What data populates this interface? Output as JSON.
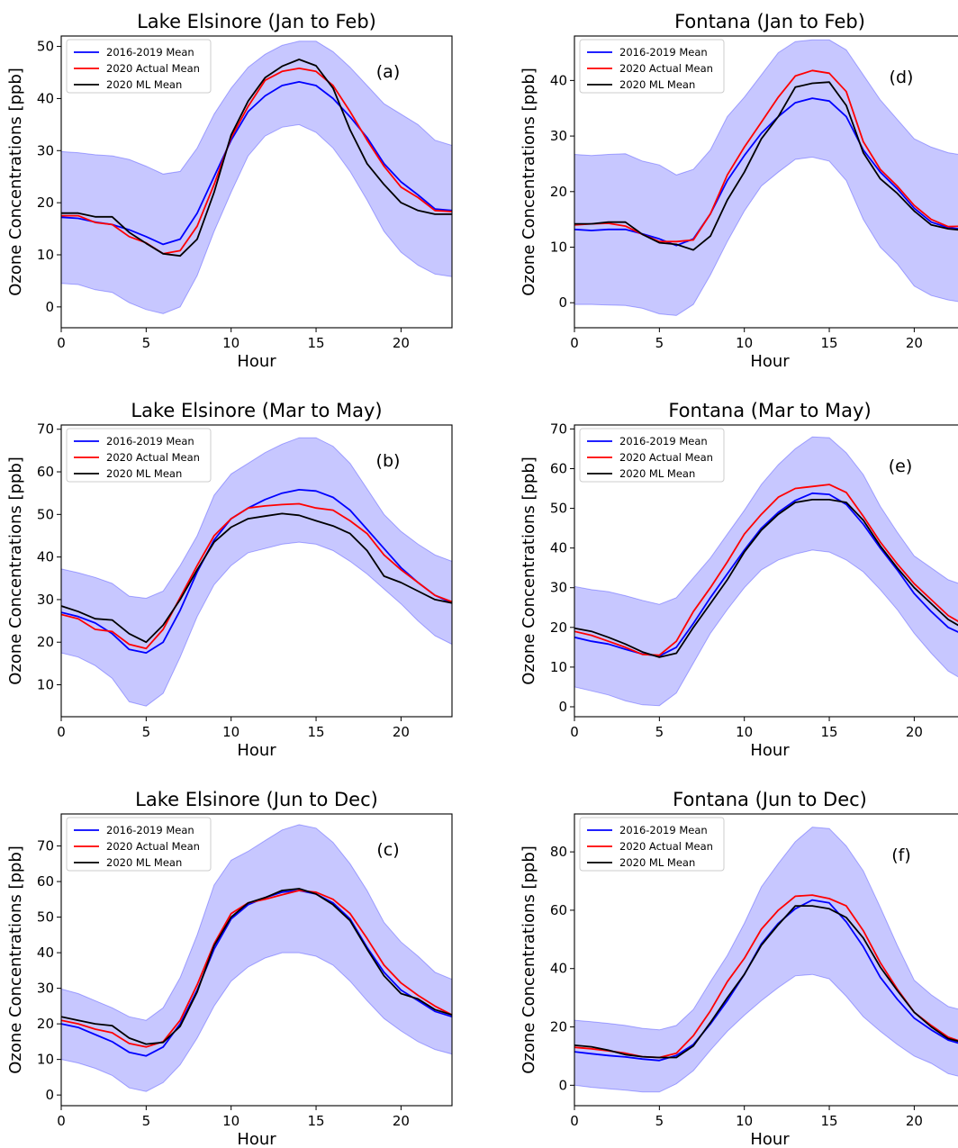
{
  "page": {
    "width": 1064,
    "height": 1275
  },
  "colors": {
    "band": "#0000ff",
    "blue": "#0000ff",
    "red": "#ff0000",
    "black": "#000000"
  },
  "chart_data": [
    {
      "type": "line",
      "title": "Lake Elsinore (Jan to Feb)",
      "panel_label": "(a)",
      "xlabel": "Hour",
      "ylabel": "Ozone Concentrations [ppb]",
      "xlim": [
        0,
        23
      ],
      "ylim": [
        -4,
        52
      ],
      "xticks": [
        0,
        5,
        10,
        15,
        20
      ],
      "yticks": [
        0,
        10,
        20,
        30,
        40,
        50
      ],
      "x": [
        0,
        1,
        2,
        3,
        4,
        5,
        6,
        7,
        8,
        9,
        10,
        11,
        12,
        13,
        14,
        15,
        16,
        17,
        18,
        19,
        20,
        21,
        22,
        23
      ],
      "band": {
        "lower": [
          4.5,
          4.3,
          3.3,
          2.8,
          0.8,
          -0.5,
          -1.3,
          0.0,
          6.0,
          14.5,
          22.0,
          29.0,
          32.8,
          34.5,
          35.0,
          33.5,
          30.5,
          26.0,
          20.5,
          14.5,
          10.5,
          8.0,
          6.3,
          5.8
        ],
        "upper": [
          29.8,
          29.6,
          29.2,
          29.0,
          28.3,
          27.0,
          25.5,
          26.0,
          30.5,
          37.0,
          42.0,
          46.0,
          48.5,
          50.2,
          51.0,
          51.0,
          49.0,
          46.0,
          42.5,
          39.0,
          37.0,
          35.0,
          32.0,
          31.0
        ]
      },
      "series": [
        {
          "name": "2016-2019 Mean",
          "color": "#0000ff",
          "values": [
            17.2,
            17.0,
            16.3,
            15.8,
            14.8,
            13.5,
            12.0,
            13.0,
            18.0,
            25.0,
            32.0,
            37.5,
            40.5,
            42.5,
            43.2,
            42.5,
            40.0,
            36.5,
            32.5,
            27.5,
            24.0,
            21.5,
            18.8,
            18.5
          ]
        },
        {
          "name": "2020 Actual Mean",
          "color": "#ff0000",
          "values": [
            17.5,
            17.5,
            16.2,
            15.8,
            13.5,
            12.3,
            10.2,
            10.8,
            15.5,
            23.5,
            32.5,
            38.5,
            43.5,
            45.2,
            45.8,
            45.2,
            42.5,
            37.5,
            32.0,
            27.0,
            23.0,
            21.0,
            18.5,
            18.3
          ]
        },
        {
          "name": "2020 ML Mean",
          "color": "#000000",
          "values": [
            18.0,
            18.0,
            17.3,
            17.3,
            14.3,
            12.2,
            10.2,
            9.8,
            13.0,
            22.0,
            33.0,
            39.5,
            44.0,
            46.2,
            47.5,
            46.3,
            42.0,
            34.0,
            27.5,
            23.5,
            20.0,
            18.5,
            17.8,
            17.8
          ]
        }
      ]
    },
    {
      "type": "line",
      "title": "Fontana (Jan to Feb)",
      "panel_label": "(d)",
      "xlabel": "Hour",
      "ylabel": "Ozone Concentrations [ppb]",
      "xlim": [
        0,
        23
      ],
      "ylim": [
        -4.5,
        48
      ],
      "xticks": [
        0,
        5,
        10,
        15,
        20
      ],
      "yticks": [
        0,
        10,
        20,
        30,
        40
      ],
      "x": [
        0,
        1,
        2,
        3,
        4,
        5,
        6,
        7,
        8,
        9,
        10,
        11,
        12,
        13,
        14,
        15,
        16,
        17,
        18,
        19,
        20,
        21,
        22,
        23
      ],
      "band": {
        "lower": [
          -0.3,
          -0.3,
          -0.4,
          -0.5,
          -1.0,
          -2.0,
          -2.3,
          -0.3,
          5.0,
          11.0,
          16.5,
          21.0,
          23.5,
          25.8,
          26.2,
          25.5,
          22.0,
          15.0,
          10.0,
          7.0,
          3.0,
          1.3,
          0.5,
          0.0
        ],
        "upper": [
          26.7,
          26.5,
          26.7,
          26.8,
          25.5,
          24.8,
          23.0,
          24.0,
          27.5,
          33.5,
          37.0,
          41.0,
          45.0,
          47.0,
          47.3,
          47.3,
          45.5,
          41.0,
          36.5,
          33.0,
          29.5,
          28.0,
          27.0,
          26.5
        ]
      },
      "series": [
        {
          "name": "2016-2019 Mean",
          "color": "#0000ff",
          "values": [
            13.2,
            13.0,
            13.2,
            13.2,
            12.4,
            11.5,
            10.3,
            11.5,
            16.0,
            22.0,
            26.5,
            30.5,
            33.5,
            36.0,
            36.8,
            36.3,
            33.5,
            27.5,
            23.5,
            20.5,
            17.0,
            14.5,
            13.5,
            13.2
          ]
        },
        {
          "name": "2020 Actual Mean",
          "color": "#ff0000",
          "values": [
            14.0,
            14.2,
            14.3,
            13.8,
            12.3,
            11.0,
            11.0,
            11.3,
            16.0,
            23.0,
            28.0,
            32.5,
            37.0,
            40.8,
            41.8,
            41.3,
            38.0,
            29.0,
            24.0,
            21.0,
            17.5,
            15.0,
            13.7,
            13.8
          ]
        },
        {
          "name": "2020 ML Mean",
          "color": "#000000",
          "values": [
            14.2,
            14.2,
            14.5,
            14.5,
            12.3,
            10.8,
            10.5,
            9.5,
            12.0,
            18.5,
            23.5,
            29.5,
            33.5,
            38.8,
            39.5,
            39.7,
            35.5,
            27.0,
            22.3,
            19.7,
            16.5,
            14.0,
            13.3,
            13.0
          ]
        }
      ]
    },
    {
      "type": "line",
      "title": "Lake Elsinore (Mar to May)",
      "panel_label": "(b)",
      "xlabel": "Hour",
      "ylabel": "Ozone Concentrations [ppb]",
      "xlim": [
        0,
        23
      ],
      "ylim": [
        2.5,
        71
      ],
      "xticks": [
        0,
        5,
        10,
        15,
        20
      ],
      "yticks": [
        10,
        20,
        30,
        40,
        50,
        60,
        70
      ],
      "x": [
        0,
        1,
        2,
        3,
        4,
        5,
        6,
        7,
        8,
        9,
        10,
        11,
        12,
        13,
        14,
        15,
        16,
        17,
        18,
        19,
        20,
        21,
        22,
        23
      ],
      "band": {
        "lower": [
          17.5,
          16.5,
          14.5,
          11.5,
          6.0,
          5.0,
          8.0,
          16.5,
          26.0,
          33.5,
          38.0,
          41.0,
          42.0,
          43.0,
          43.5,
          43.0,
          41.5,
          39.0,
          36.0,
          32.5,
          29.0,
          25.0,
          21.5,
          19.5
        ],
        "upper": [
          37.2,
          36.3,
          35.2,
          33.8,
          30.8,
          30.3,
          32.0,
          38.0,
          45.0,
          54.5,
          59.5,
          62.0,
          64.5,
          66.5,
          68.0,
          68.0,
          66.0,
          62.0,
          56.0,
          50.0,
          46.0,
          43.0,
          40.5,
          39.0
        ]
      },
      "series": [
        {
          "name": "2016-2019 Mean",
          "color": "#0000ff",
          "values": [
            27.0,
            26.0,
            24.5,
            22.0,
            18.3,
            17.5,
            20.0,
            27.5,
            36.5,
            44.0,
            49.0,
            51.5,
            53.5,
            55.0,
            55.8,
            55.5,
            54.0,
            51.0,
            46.5,
            42.0,
            37.5,
            34.0,
            31.0,
            29.2
          ]
        },
        {
          "name": "2020 Actual Mean",
          "color": "#ff0000",
          "values": [
            26.5,
            25.5,
            23.0,
            22.5,
            19.5,
            18.5,
            23.0,
            30.5,
            38.0,
            45.0,
            49.0,
            51.5,
            52.0,
            52.3,
            52.5,
            51.5,
            51.0,
            48.5,
            45.5,
            40.5,
            37.0,
            34.0,
            31.0,
            29.5
          ]
        },
        {
          "name": "2020 ML Mean",
          "color": "#000000",
          "values": [
            28.5,
            27.2,
            25.5,
            25.2,
            22.0,
            20.0,
            24.0,
            30.0,
            37.0,
            43.5,
            47.0,
            49.0,
            49.6,
            50.2,
            49.8,
            48.5,
            47.3,
            45.5,
            41.5,
            35.5,
            34.0,
            32.0,
            30.0,
            29.2
          ]
        }
      ]
    },
    {
      "type": "line",
      "title": "Fontana (Mar to May)",
      "panel_label": "(e)",
      "xlabel": "Hour",
      "ylabel": "Ozone Concentrations [ppb]",
      "xlim": [
        0,
        23
      ],
      "ylim": [
        -2.5,
        71
      ],
      "xticks": [
        0,
        5,
        10,
        15,
        20
      ],
      "yticks": [
        0,
        10,
        20,
        30,
        40,
        50,
        60,
        70
      ],
      "x": [
        0,
        1,
        2,
        3,
        4,
        5,
        6,
        7,
        8,
        9,
        10,
        11,
        12,
        13,
        14,
        15,
        16,
        17,
        18,
        19,
        20,
        21,
        22,
        23
      ],
      "band": {
        "lower": [
          5.0,
          4.0,
          3.0,
          1.5,
          0.5,
          0.3,
          3.5,
          11.0,
          18.5,
          24.5,
          30.0,
          34.5,
          37.0,
          38.5,
          39.5,
          39.0,
          37.0,
          34.0,
          29.5,
          24.5,
          18.5,
          13.5,
          9.0,
          6.5
        ],
        "upper": [
          30.3,
          29.5,
          29.0,
          28.0,
          26.8,
          25.8,
          27.5,
          32.5,
          37.5,
          43.5,
          49.5,
          56.0,
          61.0,
          65.0,
          68.0,
          67.8,
          64.0,
          58.5,
          50.5,
          44.0,
          38.0,
          35.0,
          32.0,
          30.5
        ]
      },
      "series": [
        {
          "name": "2016-2019 Mean",
          "color": "#0000ff",
          "values": [
            17.5,
            16.5,
            15.8,
            14.5,
            13.3,
            12.8,
            15.0,
            21.0,
            27.5,
            33.5,
            39.5,
            45.0,
            49.0,
            52.0,
            53.8,
            53.5,
            51.0,
            46.0,
            40.0,
            34.5,
            28.5,
            24.0,
            20.0,
            18.0
          ]
        },
        {
          "name": "2020 Actual Mean",
          "color": "#ff0000",
          "values": [
            19.0,
            18.0,
            16.5,
            15.0,
            13.2,
            13.0,
            16.5,
            24.0,
            30.0,
            36.5,
            43.5,
            48.5,
            52.8,
            55.0,
            55.5,
            56.0,
            54.0,
            48.0,
            41.5,
            36.0,
            31.0,
            27.0,
            23.0,
            20.5
          ]
        },
        {
          "name": "2020 ML Mean",
          "color": "#000000",
          "values": [
            19.8,
            19.0,
            17.5,
            15.8,
            13.8,
            12.5,
            13.5,
            20.0,
            26.0,
            32.0,
            39.0,
            44.5,
            48.5,
            51.5,
            52.2,
            52.2,
            51.5,
            47.0,
            40.5,
            35.0,
            30.0,
            26.0,
            22.0,
            19.5
          ]
        }
      ]
    },
    {
      "type": "line",
      "title": "Lake Elsinore (Jun to Dec)",
      "panel_label": "(c)",
      "xlabel": "Hour",
      "ylabel": "Ozone Concentrations [ppb]",
      "xlim": [
        0,
        23
      ],
      "ylim": [
        -3,
        79
      ],
      "xticks": [
        0,
        5,
        10,
        15,
        20
      ],
      "yticks": [
        0,
        10,
        20,
        30,
        40,
        50,
        60,
        70
      ],
      "x": [
        0,
        1,
        2,
        3,
        4,
        5,
        6,
        7,
        8,
        9,
        10,
        11,
        12,
        13,
        14,
        15,
        16,
        17,
        18,
        19,
        20,
        21,
        22,
        23
      ],
      "band": {
        "lower": [
          10.0,
          9.0,
          7.5,
          5.5,
          2.0,
          1.0,
          3.5,
          8.5,
          16.0,
          25.0,
          32.0,
          36.0,
          38.5,
          40.0,
          40.0,
          39.0,
          36.5,
          32.0,
          26.5,
          21.5,
          18.0,
          15.0,
          12.8,
          11.5
        ],
        "upper": [
          29.8,
          28.5,
          26.5,
          24.5,
          22.0,
          21.0,
          24.5,
          33.0,
          45.0,
          59.0,
          66.0,
          68.5,
          71.5,
          74.5,
          76.0,
          75.0,
          71.0,
          65.0,
          57.5,
          48.5,
          43.0,
          39.0,
          34.5,
          32.5
        ]
      },
      "series": [
        {
          "name": "2016-2019 Mean",
          "color": "#0000ff",
          "values": [
            20.0,
            19.0,
            17.0,
            15.0,
            12.0,
            11.0,
            13.5,
            20.0,
            29.5,
            41.0,
            49.5,
            53.5,
            55.5,
            57.0,
            57.5,
            56.5,
            54.0,
            49.5,
            41.5,
            34.5,
            29.5,
            26.5,
            23.5,
            22.0
          ]
        },
        {
          "name": "2020 Actual Mean",
          "color": "#ff0000",
          "values": [
            21.0,
            20.0,
            18.5,
            17.5,
            14.5,
            13.5,
            15.0,
            21.0,
            31.0,
            42.5,
            51.0,
            54.0,
            55.0,
            56.3,
            57.5,
            57.0,
            55.0,
            51.0,
            44.0,
            36.5,
            31.5,
            28.0,
            25.0,
            22.5
          ]
        },
        {
          "name": "2020 ML Mean",
          "color": "#000000",
          "values": [
            22.0,
            21.0,
            20.0,
            19.5,
            16.0,
            14.3,
            14.8,
            19.3,
            29.0,
            42.0,
            50.0,
            54.0,
            55.5,
            57.5,
            58.0,
            56.5,
            53.5,
            49.0,
            41.0,
            33.5,
            28.5,
            27.0,
            24.0,
            22.5
          ]
        }
      ]
    },
    {
      "type": "line",
      "title": "Fontana (Jun to Dec)",
      "panel_label": "(f)",
      "xlabel": "Hour",
      "ylabel": "Ozone Concentrations [ppb]",
      "xlim": [
        0,
        23
      ],
      "ylim": [
        -7,
        93
      ],
      "xticks": [
        0,
        5,
        10,
        15,
        20
      ],
      "yticks": [
        0,
        20,
        40,
        60,
        80
      ],
      "x": [
        0,
        1,
        2,
        3,
        4,
        5,
        6,
        7,
        8,
        9,
        10,
        11,
        12,
        13,
        14,
        15,
        16,
        17,
        18,
        19,
        20,
        21,
        22,
        23
      ],
      "band": {
        "lower": [
          0.0,
          -0.7,
          -1.2,
          -1.7,
          -2.3,
          -2.3,
          0.5,
          5.0,
          12.0,
          18.5,
          24.0,
          29.0,
          33.5,
          37.5,
          38.0,
          36.5,
          30.5,
          23.5,
          18.5,
          14.0,
          10.0,
          7.5,
          4.0,
          2.5
        ],
        "upper": [
          22.3,
          21.8,
          21.2,
          20.5,
          19.5,
          19.0,
          20.5,
          26.0,
          35.5,
          44.5,
          55.5,
          68.0,
          76.0,
          83.5,
          88.5,
          88.0,
          82.0,
          73.5,
          61.0,
          48.0,
          36.0,
          31.0,
          27.0,
          25.5
        ]
      },
      "series": [
        {
          "name": "2016-2019 Mean",
          "color": "#0000ff",
          "values": [
            11.5,
            10.8,
            10.2,
            9.7,
            9.0,
            8.5,
            10.2,
            14.0,
            21.0,
            29.0,
            38.0,
            48.5,
            55.5,
            60.5,
            63.5,
            62.5,
            56.0,
            47.5,
            37.0,
            29.5,
            23.0,
            19.0,
            15.5,
            13.8
          ]
        },
        {
          "name": "2020 Actual Mean",
          "color": "#ff0000",
          "values": [
            13.0,
            12.5,
            11.8,
            11.0,
            9.8,
            9.5,
            11.0,
            17.0,
            25.5,
            35.5,
            43.5,
            53.5,
            60.0,
            64.8,
            65.2,
            64.0,
            61.5,
            53.0,
            42.0,
            33.0,
            25.0,
            20.5,
            16.5,
            14.5
          ]
        },
        {
          "name": "2020 ML Mean",
          "color": "#000000",
          "values": [
            13.7,
            13.2,
            12.0,
            10.5,
            9.8,
            9.5,
            9.5,
            13.5,
            21.5,
            30.0,
            38.0,
            48.0,
            55.0,
            61.5,
            61.5,
            60.5,
            57.5,
            50.5,
            40.5,
            32.5,
            25.0,
            20.0,
            16.0,
            14.5
          ]
        }
      ]
    }
  ]
}
